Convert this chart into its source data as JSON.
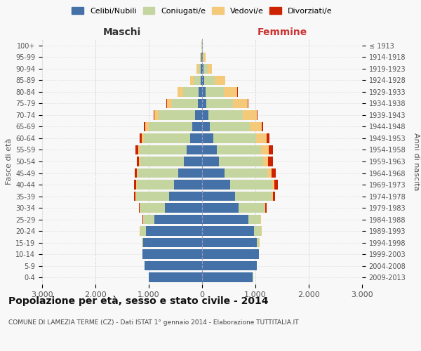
{
  "age_groups": [
    "0-4",
    "5-9",
    "10-14",
    "15-19",
    "20-24",
    "25-29",
    "30-34",
    "35-39",
    "40-44",
    "45-49",
    "50-54",
    "55-59",
    "60-64",
    "65-69",
    "70-74",
    "75-79",
    "80-84",
    "85-89",
    "90-94",
    "95-99",
    "100+"
  ],
  "birth_years": [
    "2009-2013",
    "2004-2008",
    "1999-2003",
    "1994-1998",
    "1989-1993",
    "1984-1988",
    "1979-1983",
    "1974-1978",
    "1969-1973",
    "1964-1968",
    "1959-1963",
    "1954-1958",
    "1949-1953",
    "1944-1948",
    "1939-1943",
    "1934-1938",
    "1929-1933",
    "1924-1928",
    "1919-1923",
    "1914-1918",
    "≤ 1913"
  ],
  "males": {
    "celibi": [
      1000,
      1080,
      1120,
      1100,
      1050,
      900,
      700,
      620,
      530,
      450,
      340,
      290,
      220,
      180,
      130,
      80,
      60,
      30,
      20,
      10,
      5
    ],
    "coniugati": [
      5,
      5,
      5,
      30,
      110,
      200,
      460,
      620,
      700,
      760,
      820,
      880,
      870,
      820,
      680,
      480,
      300,
      130,
      50,
      15,
      5
    ],
    "vedovi": [
      0,
      0,
      0,
      5,
      5,
      5,
      5,
      5,
      5,
      10,
      20,
      30,
      40,
      60,
      80,
      100,
      100,
      70,
      30,
      10,
      2
    ],
    "divorziati": [
      0,
      0,
      0,
      0,
      5,
      10,
      20,
      35,
      40,
      45,
      45,
      50,
      40,
      30,
      20,
      10,
      5,
      0,
      0,
      0,
      0
    ]
  },
  "females": {
    "nubili": [
      950,
      1020,
      1060,
      1030,
      980,
      870,
      680,
      620,
      530,
      420,
      320,
      270,
      210,
      150,
      120,
      80,
      60,
      40,
      20,
      10,
      5
    ],
    "coniugate": [
      5,
      5,
      10,
      40,
      130,
      220,
      490,
      680,
      780,
      810,
      820,
      830,
      800,
      740,
      640,
      500,
      350,
      200,
      80,
      20,
      5
    ],
    "vedove": [
      0,
      0,
      0,
      5,
      5,
      10,
      15,
      25,
      40,
      70,
      100,
      150,
      200,
      230,
      270,
      280,
      250,
      200,
      90,
      30,
      5
    ],
    "divorziate": [
      0,
      0,
      0,
      0,
      5,
      10,
      20,
      40,
      65,
      80,
      90,
      80,
      50,
      25,
      15,
      10,
      5,
      0,
      0,
      0,
      0
    ]
  },
  "colors": {
    "celibi": "#4472a8",
    "coniugati": "#c5d5a0",
    "vedovi": "#f5c97a",
    "divorziati": "#cc2200"
  },
  "xlim": 3000,
  "title": "Popolazione per età, sesso e stato civile - 2014",
  "subtitle": "COMUNE DI LAMEZIA TERME (CZ) - Dati ISTAT 1° gennaio 2014 - Elaborazione TUTTITALIA.IT",
  "ylabel_left": "Fasce di età",
  "ylabel_right": "Anni di nascita",
  "xlabel_left": "Maschi",
  "xlabel_right": "Femmine"
}
